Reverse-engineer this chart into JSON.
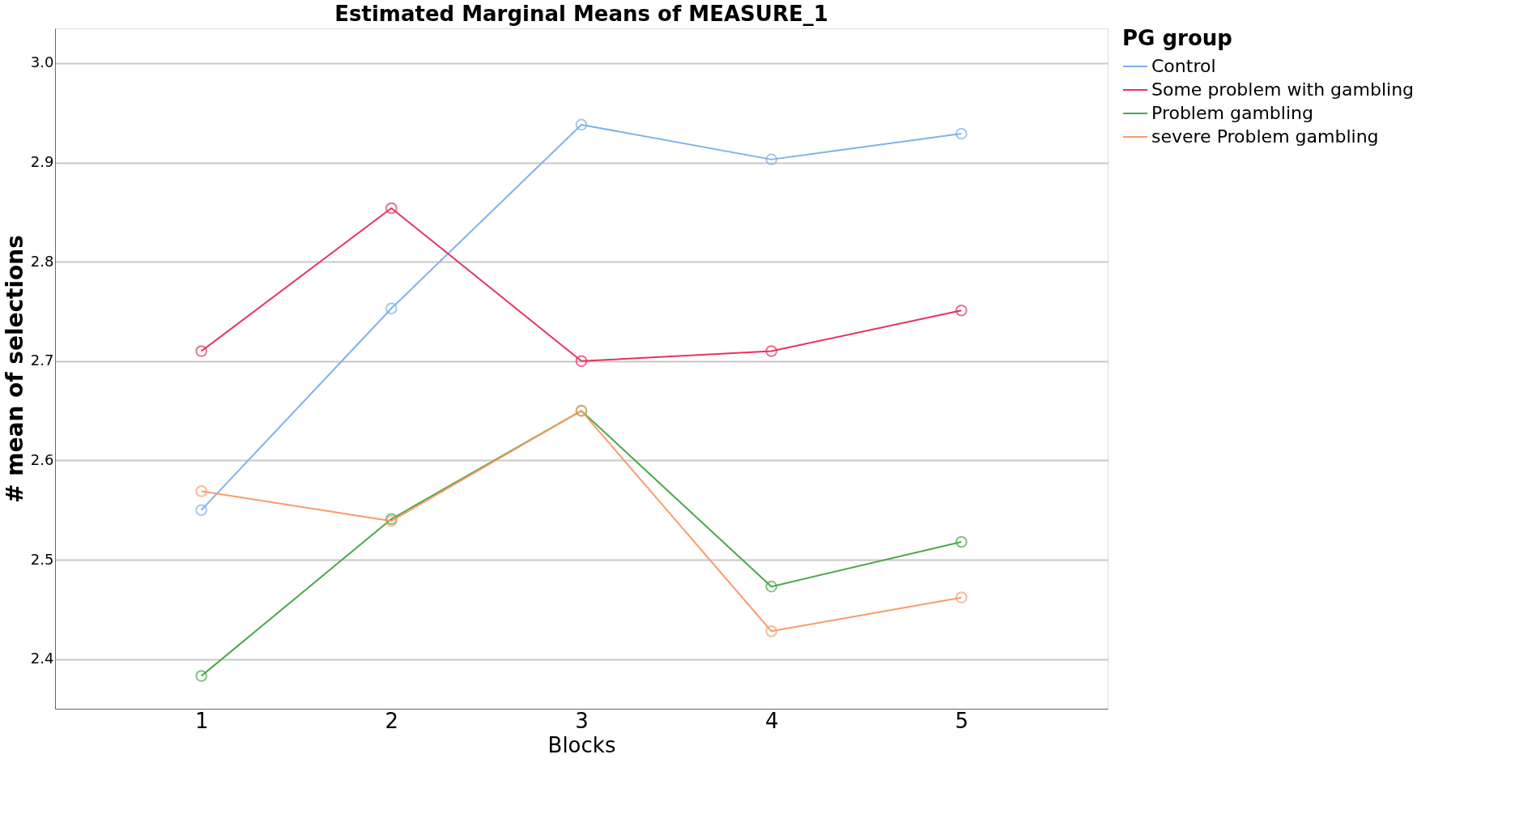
{
  "chart_data": {
    "type": "line",
    "title": "Estimated Marginal Means of MEASURE_1",
    "xlabel": "Blocks",
    "ylabel": "# mean of selections",
    "legend_title": "PG group",
    "legend": "top right",
    "grid": "y",
    "marker": "circle",
    "line_style": "solid",
    "x": [
      1,
      2,
      3,
      4,
      5
    ],
    "xlim": [
      0.23,
      5.77
    ],
    "xticks": [
      1,
      2,
      3,
      4,
      5
    ],
    "ylim": [
      2.35,
      3.035
    ],
    "yticks": [
      2.4,
      2.5,
      2.6,
      2.7,
      2.8,
      2.9,
      {
        "value": 3,
        "label": "3.0"
      }
    ],
    "series": [
      {
        "name": "Control",
        "color": "#7eb2ee",
        "values": [
          2.55,
          2.753,
          2.938,
          2.903,
          2.929
        ]
      },
      {
        "name": "Some problem with gambling",
        "color": "#e6335f",
        "values": [
          2.71,
          2.854,
          2.7,
          2.71,
          2.751
        ]
      },
      {
        "name": "Problem gambling",
        "color": "#4aa84a",
        "values": [
          2.383,
          2.541,
          2.65,
          2.473,
          2.518
        ]
      },
      {
        "name": "severe Problem gambling",
        "color": "#f89c6a",
        "values": [
          2.569,
          2.539,
          2.65,
          2.428,
          2.462
        ]
      }
    ]
  }
}
